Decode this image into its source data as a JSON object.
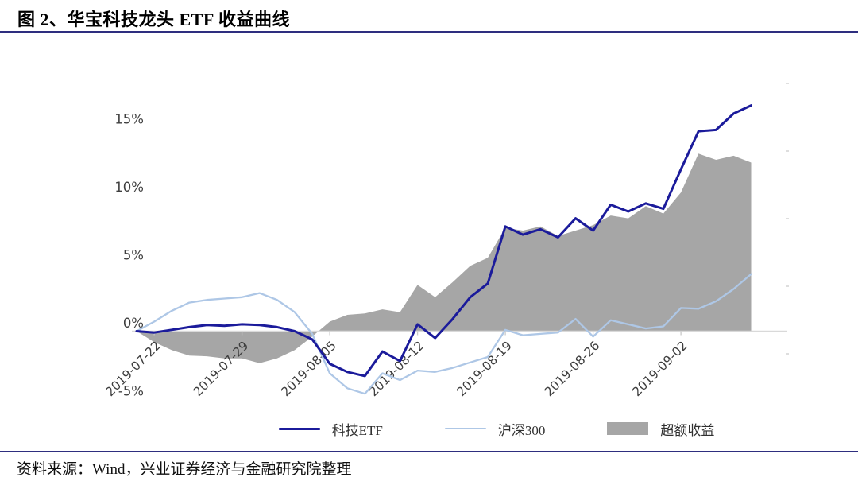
{
  "title": "图 2、华宝科技龙头 ETF 收益曲线",
  "source": "资料来源：Wind，兴业证券经济与金融研究院整理",
  "colors": {
    "tech_etf_line": "#1b1b9b",
    "csi300_line": "#aec7e6",
    "excess_area": "#a6a6a6",
    "axis_line": "#d9d9d9",
    "tick_mark": "#c9c9c9",
    "axis_label": "#3e3e3e",
    "rule_navy": "#2e2e7f"
  },
  "chart_data": {
    "type": "line",
    "title": "图 2、华宝科技龙头 ETF 收益曲线",
    "grid": false,
    "legend_position": "bottom",
    "ylim": [
      -5.5,
      17.5
    ],
    "y_tick_labels": [
      "15%",
      "10%",
      "5%",
      "0%",
      "-5%"
    ],
    "x_tick_labels": [
      "2019-07-22",
      "2019-07-29",
      "2019-08-05",
      "2019-08-12",
      "2019-08-19",
      "2019-08-26",
      "2019-09-02"
    ],
    "x_dates": [
      "2019-07-19",
      "2019-07-22",
      "2019-07-23",
      "2019-07-24",
      "2019-07-25",
      "2019-07-26",
      "2019-07-29",
      "2019-07-30",
      "2019-07-31",
      "2019-08-01",
      "2019-08-02",
      "2019-08-05",
      "2019-08-06",
      "2019-08-07",
      "2019-08-08",
      "2019-08-09",
      "2019-08-12",
      "2019-08-13",
      "2019-08-14",
      "2019-08-15",
      "2019-08-16",
      "2019-08-19",
      "2019-08-20",
      "2019-08-21",
      "2019-08-22",
      "2019-08-23",
      "2019-08-26",
      "2019-08-27",
      "2019-08-28",
      "2019-08-29",
      "2019-08-30",
      "2019-09-02",
      "2019-09-03",
      "2019-09-04",
      "2019-09-05",
      "2019-09-06"
    ],
    "unit": "percent",
    "series": [
      {
        "name": "科技ETF",
        "type": "line",
        "color": "#1b1b9b",
        "values": [
          0.0,
          -0.1,
          0.1,
          0.3,
          0.45,
          0.4,
          0.5,
          0.45,
          0.3,
          0.0,
          -0.6,
          -2.4,
          -3.0,
          -3.3,
          -1.5,
          -2.2,
          0.5,
          -0.5,
          0.9,
          2.5,
          3.5,
          7.7,
          7.1,
          7.5,
          6.9,
          8.3,
          7.4,
          9.3,
          8.8,
          9.4,
          9.0,
          11.9,
          14.7,
          14.8,
          16.0,
          16.6
        ]
      },
      {
        "name": "沪深300",
        "type": "line",
        "color": "#aec7e6",
        "values": [
          0.0,
          0.7,
          1.5,
          2.1,
          2.3,
          2.4,
          2.5,
          2.8,
          2.3,
          1.4,
          -0.2,
          -3.1,
          -4.2,
          -4.6,
          -3.1,
          -3.6,
          -2.9,
          -3.0,
          -2.7,
          -2.3,
          -1.9,
          0.1,
          -0.3,
          -0.2,
          -0.1,
          0.9,
          -0.4,
          0.8,
          0.5,
          0.2,
          0.35,
          1.7,
          1.65,
          2.2,
          3.1,
          4.2
        ]
      },
      {
        "name": "超额收益",
        "type": "area",
        "color": "#a6a6a6",
        "values": [
          0.0,
          -0.8,
          -1.4,
          -1.8,
          -1.85,
          -2.0,
          -2.0,
          -2.35,
          -2.0,
          -1.4,
          -0.4,
          0.7,
          1.2,
          1.3,
          1.6,
          1.4,
          3.4,
          2.5,
          3.6,
          4.8,
          5.4,
          7.6,
          7.4,
          7.7,
          7.0,
          7.4,
          7.8,
          8.5,
          8.3,
          9.2,
          8.65,
          10.2,
          13.05,
          12.6,
          12.9,
          12.4
        ]
      }
    ]
  },
  "legend": [
    {
      "label": "科技ETF",
      "swatch": "line",
      "color": "#1b1b9b"
    },
    {
      "label": "沪深300",
      "swatch": "line",
      "color": "#aec7e6"
    },
    {
      "label": "超额收益",
      "swatch": "area",
      "color": "#a6a6a6"
    }
  ]
}
